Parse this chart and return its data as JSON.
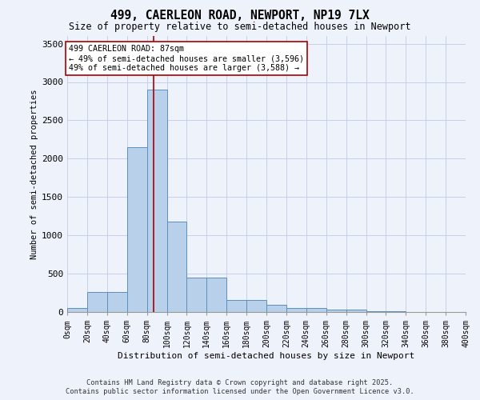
{
  "title_line1": "499, CAERLEON ROAD, NEWPORT, NP19 7LX",
  "title_line2": "Size of property relative to semi-detached houses in Newport",
  "xlabel": "Distribution of semi-detached houses by size in Newport",
  "ylabel": "Number of semi-detached properties",
  "bar_color": "#b8d0ea",
  "bar_edge_color": "#5a8fc0",
  "background_color": "#eef2fa",
  "grid_color": "#c8d0e8",
  "annotation_text": "499 CAERLEON ROAD: 87sqm\n← 49% of semi-detached houses are smaller (3,596)\n49% of semi-detached houses are larger (3,588) →",
  "property_sqm": 87,
  "bin_edges": [
    0,
    20,
    40,
    60,
    80,
    100,
    120,
    140,
    160,
    180,
    200,
    220,
    240,
    260,
    280,
    300,
    320,
    340,
    360,
    380,
    400
  ],
  "bin_labels": [
    "0sqm",
    "20sqm",
    "40sqm",
    "60sqm",
    "80sqm",
    "100sqm",
    "120sqm",
    "140sqm",
    "160sqm",
    "180sqm",
    "200sqm",
    "220sqm",
    "240sqm",
    "260sqm",
    "280sqm",
    "300sqm",
    "320sqm",
    "340sqm",
    "360sqm",
    "380sqm",
    "400sqm"
  ],
  "bar_heights": [
    50,
    260,
    260,
    2150,
    2900,
    1180,
    450,
    450,
    160,
    160,
    95,
    50,
    50,
    30,
    30,
    10,
    10,
    5,
    5,
    5
  ],
  "ylim": [
    0,
    3600
  ],
  "yticks": [
    0,
    500,
    1000,
    1500,
    2000,
    2500,
    3000,
    3500
  ],
  "footer_line1": "Contains HM Land Registry data © Crown copyright and database right 2025.",
  "footer_line2": "Contains public sector information licensed under the Open Government Licence v3.0.",
  "red_line_color": "#aa0000",
  "annotation_box_edge": "#aa0000",
  "fig_width": 6.0,
  "fig_height": 5.0,
  "fig_dpi": 100
}
